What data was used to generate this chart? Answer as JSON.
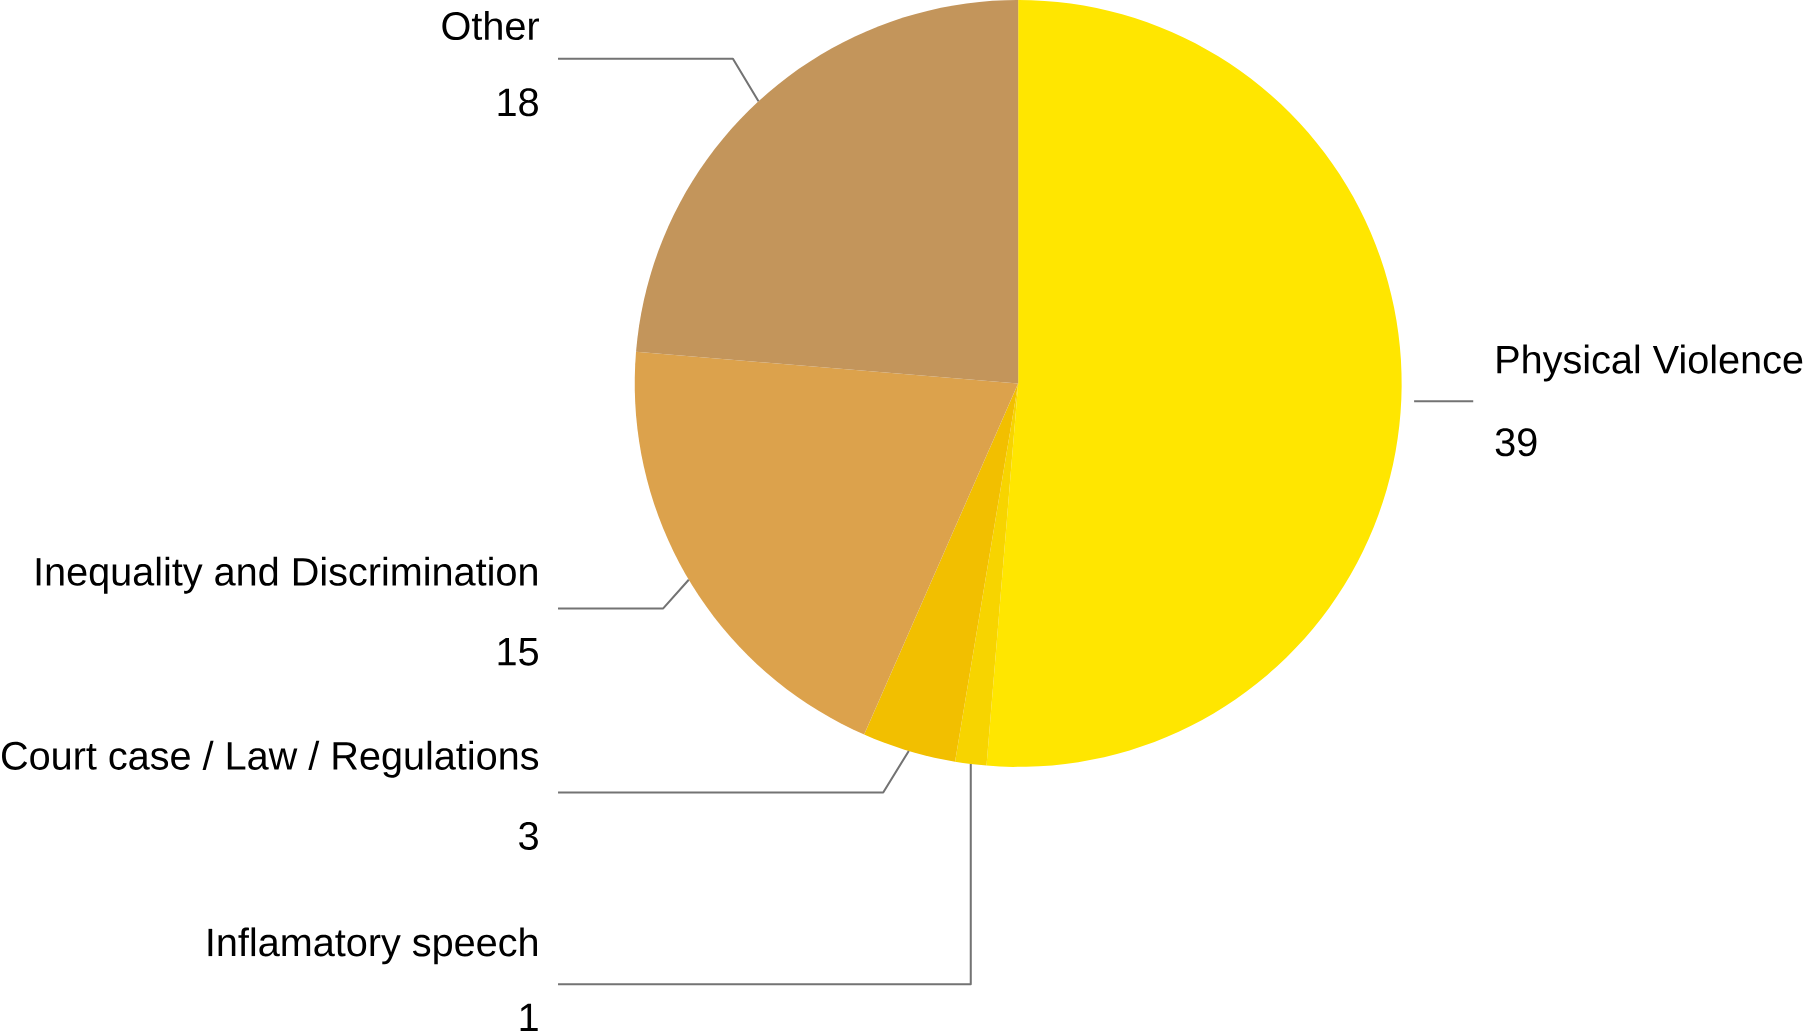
{
  "chart_data": {
    "type": "pie",
    "categories": [
      "Physical Violence",
      "Inflamatory speech",
      "Court case / Law / Regulations",
      "Inequality and Discrimination",
      "Other"
    ],
    "values": [
      39,
      1,
      3,
      15,
      18
    ],
    "colors": [
      "#ffe600",
      "#f7d400",
      "#f2bf00",
      "#dca24c",
      "#c3955b"
    ],
    "data_labels": true
  }
}
